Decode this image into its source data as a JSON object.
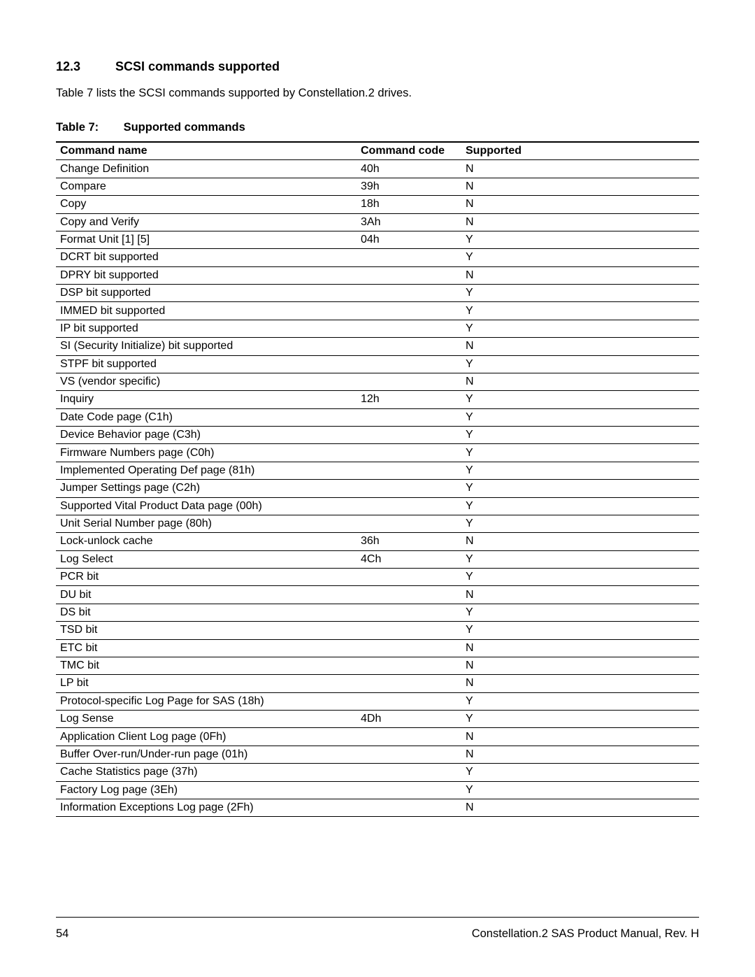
{
  "section": {
    "number": "12.3",
    "title": "SCSI commands supported"
  },
  "intro_text": "Table 7 lists the SCSI commands supported by Constellation.2 drives.",
  "caption": {
    "label": "Table 7:",
    "title": "Supported commands"
  },
  "table": {
    "columns": [
      "Command name",
      "Command code",
      "Supported"
    ],
    "rows": [
      {
        "name": "Change Definition",
        "code": "40h",
        "supported": "N",
        "indent": 0
      },
      {
        "name": "Compare",
        "code": "39h",
        "supported": "N",
        "indent": 0
      },
      {
        "name": "Copy",
        "code": "18h",
        "supported": "N",
        "indent": 0
      },
      {
        "name": "Copy and Verify",
        "code": "3Ah",
        "supported": "N",
        "indent": 0
      },
      {
        "name": "Format Unit [1] [5]",
        "code": "04h",
        "supported": "Y",
        "indent": 0
      },
      {
        "name": "DCRT bit supported",
        "code": "",
        "supported": "Y",
        "indent": 1
      },
      {
        "name": "DPRY bit supported",
        "code": "",
        "supported": "N",
        "indent": 1
      },
      {
        "name": "DSP bit supported",
        "code": "",
        "supported": "Y",
        "indent": 1
      },
      {
        "name": "IMMED bit supported",
        "code": "",
        "supported": "Y",
        "indent": 1
      },
      {
        "name": "IP bit supported",
        "code": "",
        "supported": "Y",
        "indent": 1
      },
      {
        "name": "SI (Security Initialize) bit supported",
        "code": "",
        "supported": "N",
        "indent": 1
      },
      {
        "name": "STPF bit supported",
        "code": "",
        "supported": "Y",
        "indent": 1
      },
      {
        "name": "VS (vendor specific)",
        "code": "",
        "supported": "N",
        "indent": 1
      },
      {
        "name": "Inquiry",
        "code": "12h",
        "supported": "Y",
        "indent": 0
      },
      {
        "name": "Date Code page (C1h)",
        "code": "",
        "supported": "Y",
        "indent": 1
      },
      {
        "name": "Device Behavior page (C3h)",
        "code": "",
        "supported": "Y",
        "indent": 1
      },
      {
        "name": "Firmware Numbers page (C0h)",
        "code": "",
        "supported": "Y",
        "indent": 1
      },
      {
        "name": "Implemented Operating Def page (81h)",
        "code": "",
        "supported": "Y",
        "indent": 1
      },
      {
        "name": "Jumper Settings page (C2h)",
        "code": "",
        "supported": "Y",
        "indent": 1
      },
      {
        "name": "Supported Vital Product Data page (00h)",
        "code": "",
        "supported": "Y",
        "indent": 1
      },
      {
        "name": "Unit Serial Number page (80h)",
        "code": "",
        "supported": "Y",
        "indent": 1
      },
      {
        "name": "Lock-unlock cache",
        "code": "36h",
        "supported": "N",
        "indent": 0
      },
      {
        "name": "Log Select",
        "code": "4Ch",
        "supported": "Y",
        "indent": 0
      },
      {
        "name": "PCR bit",
        "code": "",
        "supported": "Y",
        "indent": 1
      },
      {
        "name": "DU bit",
        "code": "",
        "supported": "N",
        "indent": 1
      },
      {
        "name": "DS bit",
        "code": "",
        "supported": "Y",
        "indent": 1
      },
      {
        "name": "TSD bit",
        "code": "",
        "supported": "Y",
        "indent": 1
      },
      {
        "name": "ETC bit",
        "code": "",
        "supported": "N",
        "indent": 1
      },
      {
        "name": "TMC bit",
        "code": "",
        "supported": "N",
        "indent": 1
      },
      {
        "name": "LP bit",
        "code": "",
        "supported": "N",
        "indent": 1
      },
      {
        "name": "Protocol-specific Log Page for SAS (18h)",
        "code": "",
        "supported": "Y",
        "indent": 1
      },
      {
        "name": "Log Sense",
        "code": "4Dh",
        "supported": "Y",
        "indent": 0
      },
      {
        "name": "Application Client Log page (0Fh)",
        "code": "",
        "supported": "N",
        "indent": 1
      },
      {
        "name": "Buffer Over-run/Under-run page (01h)",
        "code": "",
        "supported": "N",
        "indent": 1
      },
      {
        "name": "Cache Statistics page (37h)",
        "code": "",
        "supported": "Y",
        "indent": 1
      },
      {
        "name": "Factory Log page (3Eh)",
        "code": "",
        "supported": "Y",
        "indent": 1
      },
      {
        "name": "Information Exceptions Log page (2Fh)",
        "code": "",
        "supported": "N",
        "indent": 1
      }
    ]
  },
  "footer": {
    "page_number": "54",
    "doc_title": "Constellation.2 SAS Product Manual, Rev. H"
  }
}
